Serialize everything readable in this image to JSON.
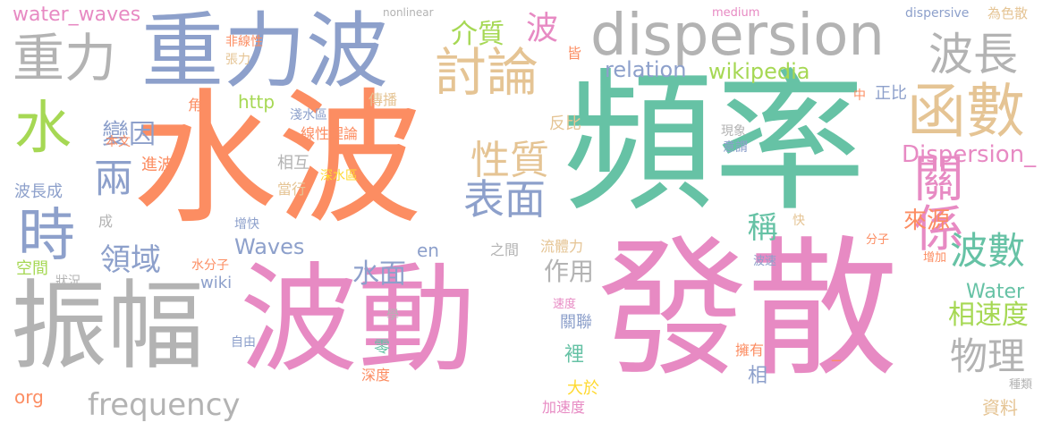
{
  "palette": {
    "orange": "#fc8d62",
    "green": "#66c2a5",
    "blue": "#8da0cb",
    "pink": "#e78ac3",
    "lime": "#a6d854",
    "yellow": "#ffd92f",
    "tan": "#e5c494",
    "gray": "#b3b3b3"
  },
  "words": [
    {
      "text": "水波",
      "color": "orange"
    },
    {
      "text": "頻率",
      "color": "green"
    },
    {
      "text": "發散",
      "color": "pink"
    },
    {
      "text": "波動",
      "color": "pink"
    },
    {
      "text": "振幅",
      "color": "gray"
    },
    {
      "text": "重力波",
      "color": "blue"
    },
    {
      "text": "dispersion",
      "color": "gray"
    },
    {
      "text": "重力",
      "color": "gray"
    },
    {
      "text": "討論",
      "color": "tan"
    },
    {
      "text": "函數",
      "color": "tan"
    },
    {
      "text": "波長",
      "color": "gray"
    },
    {
      "text": "關係",
      "color": "pink"
    },
    {
      "text": "水",
      "color": "lime"
    },
    {
      "text": "時",
      "color": "blue"
    },
    {
      "text": "性質",
      "color": "tan"
    },
    {
      "text": "表面",
      "color": "blue"
    },
    {
      "text": "波數",
      "color": "green"
    },
    {
      "text": "物理",
      "color": "gray"
    },
    {
      "text": "相速度",
      "color": "lime"
    },
    {
      "text": "frequency",
      "color": "gray"
    },
    {
      "text": "領域",
      "color": "blue"
    },
    {
      "text": "兩",
      "color": "blue"
    },
    {
      "text": "變因",
      "color": "blue"
    },
    {
      "text": "介質",
      "color": "lime"
    },
    {
      "text": "波",
      "color": "pink"
    },
    {
      "text": "稱",
      "color": "green"
    },
    {
      "text": "水面",
      "color": "blue"
    },
    {
      "text": "作用",
      "color": "gray"
    },
    {
      "text": "來源",
      "color": "orange"
    },
    {
      "text": "Dispersion_",
      "color": "pink"
    },
    {
      "text": "Water",
      "color": "green"
    },
    {
      "text": "Waves",
      "color": "blue"
    },
    {
      "text": "wikipedia",
      "color": "lime"
    },
    {
      "text": "relation",
      "color": "blue"
    },
    {
      "text": "water_waves",
      "color": "pink"
    },
    {
      "text": "nonlinear",
      "color": "gray"
    },
    {
      "text": "medium",
      "color": "pink"
    },
    {
      "text": "dispersive",
      "color": "blue"
    },
    {
      "text": "為色散",
      "color": "tan"
    },
    {
      "text": "非線性",
      "color": "orange"
    },
    {
      "text": "張力",
      "color": "tan"
    },
    {
      "text": "http",
      "color": "lime"
    },
    {
      "text": "淺水區",
      "color": "blue"
    },
    {
      "text": "傳播",
      "color": "tan"
    },
    {
      "text": "線性理論",
      "color": "orange"
    },
    {
      "text": "反比",
      "color": "tan"
    },
    {
      "text": "正比",
      "color": "blue"
    },
    {
      "text": "中",
      "color": "orange"
    },
    {
      "text": "角",
      "color": "orange"
    },
    {
      "text": "本文",
      "color": "orange"
    },
    {
      "text": "進波",
      "color": "orange"
    },
    {
      "text": "相互",
      "color": "gray"
    },
    {
      "text": "深水區",
      "color": "yellow"
    },
    {
      "text": "當行",
      "color": "tan"
    },
    {
      "text": "波長成",
      "color": "blue"
    },
    {
      "text": "成",
      "color": "gray"
    },
    {
      "text": "增快",
      "color": "blue"
    },
    {
      "text": "快",
      "color": "tan"
    },
    {
      "text": "en",
      "color": "blue"
    },
    {
      "text": "之間",
      "color": "gray"
    },
    {
      "text": "流體力",
      "color": "tan"
    },
    {
      "text": "分子",
      "color": "orange"
    },
    {
      "text": "增加",
      "color": "orange"
    },
    {
      "text": "空間",
      "color": "lime"
    },
    {
      "text": "狀況",
      "color": "gray"
    },
    {
      "text": "水分子",
      "color": "orange"
    },
    {
      "text": "wiki",
      "color": "blue"
    },
    {
      "text": "波速",
      "color": "blue"
    },
    {
      "text": "速度",
      "color": "pink"
    },
    {
      "text": "學",
      "color": "gray"
    },
    {
      "text": "關聯",
      "color": "blue"
    },
    {
      "text": "自由",
      "color": "blue"
    },
    {
      "text": "零",
      "color": "green"
    },
    {
      "text": "裡",
      "color": "green"
    },
    {
      "text": "深度",
      "color": "orange"
    },
    {
      "text": "org",
      "color": "orange"
    },
    {
      "text": "大於",
      "color": "yellow"
    },
    {
      "text": "加速度",
      "color": "pink"
    },
    {
      "text": "擁有",
      "color": "orange"
    },
    {
      "text": "相",
      "color": "blue"
    },
    {
      "text": "資料",
      "color": "tan"
    },
    {
      "text": "種類",
      "color": "gray"
    },
    {
      "text": "現象",
      "color": "gray"
    },
    {
      "text": "意謂",
      "color": "blue"
    },
    {
      "text": "皆",
      "color": "orange"
    },
    {
      "text": "_",
      "color": "orange"
    }
  ]
}
